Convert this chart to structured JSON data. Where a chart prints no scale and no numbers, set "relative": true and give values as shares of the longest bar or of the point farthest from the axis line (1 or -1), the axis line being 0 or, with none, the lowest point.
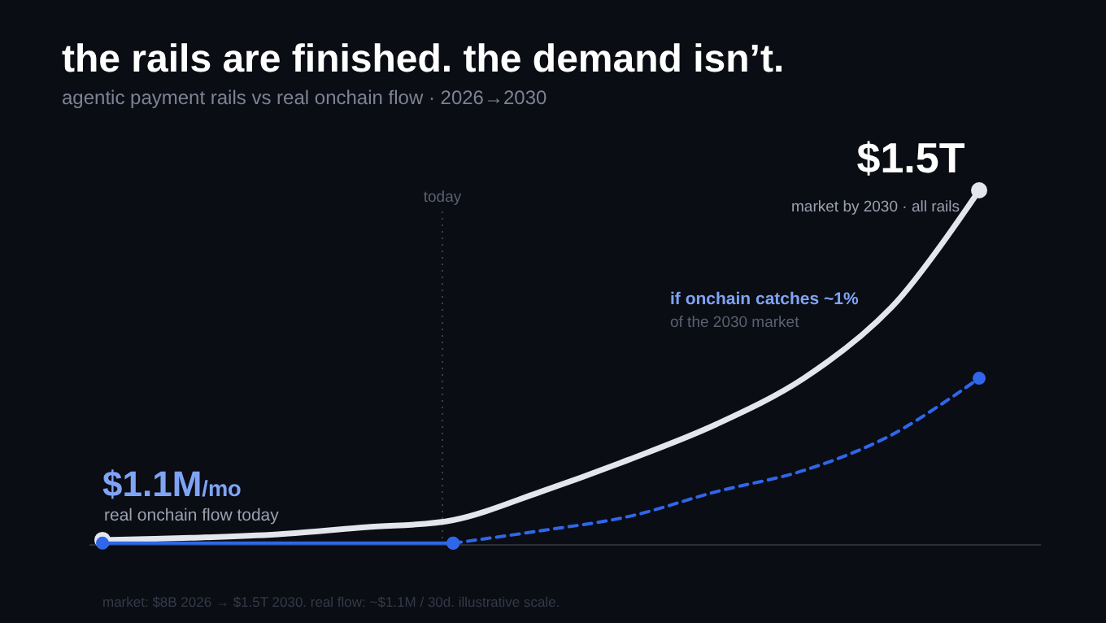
{
  "chart_data": {
    "type": "line",
    "title": "the rails are finished. the demand isn’t.",
    "subtitle": "agentic payment rails vs real onchain flow · 2026→2030",
    "relative": true,
    "categories": [
      null,
      null,
      null,
      null,
      null,
      null,
      null,
      null,
      null,
      null,
      null
    ],
    "series": [
      {
        "color": "#e4e6ee",
        "line_style": "solid",
        "values": [
          0.014,
          0.02,
          0.03,
          0.05,
          0.07,
          0.15,
          0.24,
          0.34,
          0.47,
          0.67,
          1
        ]
      },
      {
        "color": "#2f66ea",
        "line_style": "solid",
        "values": [
          0.005,
          0.005,
          0.005,
          0.005,
          0.005,
          null,
          null,
          null,
          null,
          null,
          null
        ]
      },
      {
        "color": "#2f66ea",
        "line_style": "dashed",
        "values": [
          null,
          null,
          null,
          null,
          0.005,
          0.04,
          0.08,
          0.15,
          0.21,
          0.31,
          0.47
        ]
      }
    ],
    "annotations": [
      "today",
      "$1.5T",
      "market by 2030 · all rails",
      "$1.1M/mo",
      "real onchain flow today",
      "if onchain catches ~1%",
      "of the 2030 market",
      "market: $8B 2026 → $1.5T 2030. real flow: ~$1.1M / 30d. illustrative scale."
    ]
  }
}
